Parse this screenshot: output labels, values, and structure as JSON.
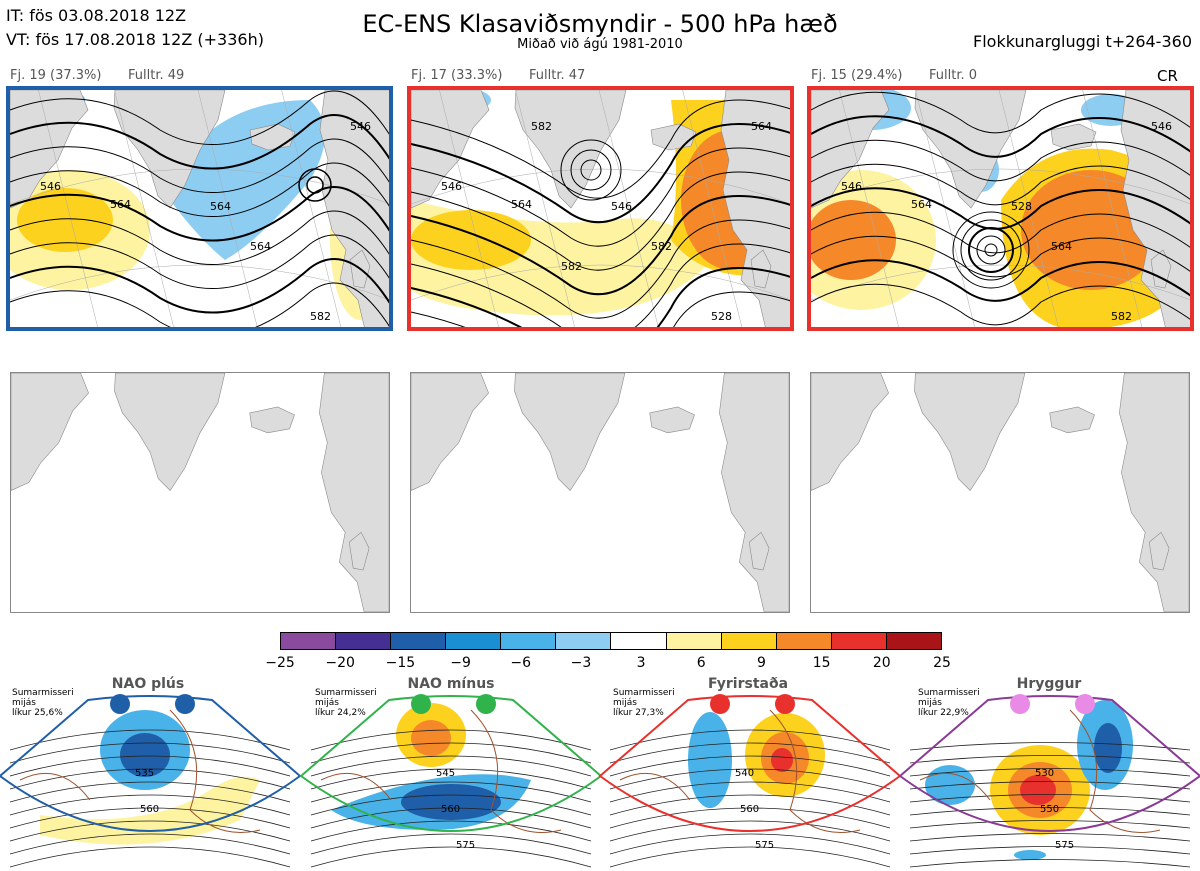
{
  "header": {
    "it": "IT: fös 03.08.2018 12Z",
    "vt": "VT: fös 17.08.2018 12Z  (+336h)",
    "title": "EC-ENS Klasaviðsmyndir - 500 hPa hæð",
    "subtitle": "Miðað við ágú 1981-2010",
    "window": "Flokkunargluggi t+264-360",
    "cr": "CR"
  },
  "panels": [
    {
      "label": "Fj. 19 (37.3%)",
      "fulltr": "Fulltr. 49",
      "border": "#1f5fa8",
      "contours": [
        "546",
        "564",
        "564",
        "582",
        "564",
        "546"
      ]
    },
    {
      "label": "Fj. 17 (33.3%)",
      "fulltr": "Fulltr. 47",
      "border": "#e8312c",
      "contours": [
        "546",
        "564",
        "582",
        "528",
        "546",
        "564",
        "582",
        "582"
      ]
    },
    {
      "label": "Fj. 15 (29.4%)",
      "fulltr": "Fulltr. 0",
      "border": "#e8312c",
      "contours": [
        "546",
        "564",
        "564",
        "582",
        "528",
        "546"
      ]
    }
  ],
  "colorbar": {
    "ticks": [
      "−25",
      "−20",
      "−15",
      "−9",
      "−6",
      "−3",
      "3",
      "6",
      "9",
      "15",
      "20",
      "25"
    ],
    "colors": [
      "#8a4b9f",
      "#462f93",
      "#1f5ea8",
      "#1a8fd1",
      "#49b2e8",
      "#8ecdf2",
      "#ffffff",
      "#fdf3a0",
      "#fdd21f",
      "#f5892a",
      "#e8312c",
      "#a91419"
    ]
  },
  "regimes": [
    {
      "name": "NAO plús",
      "info1": "Sumarmisseri",
      "info2": "mijás",
      "info3": "líkur 25,6%",
      "dot": "#1f5fa8",
      "frame": "#1f5fa8",
      "labels": [
        "535",
        "560"
      ]
    },
    {
      "name": "NAO mínus",
      "info1": "Sumarmisseri",
      "info2": "mijás",
      "info3": "líkur 24,2%",
      "dot": "#2fb34a",
      "frame": "#2fb34a",
      "labels": [
        "545",
        "560",
        "575"
      ]
    },
    {
      "name": "Fyrirstaða",
      "info1": "Sumarmisseri",
      "info2": "mijás",
      "info3": "líkur 27,3%",
      "dot": "#e8312c",
      "frame": "#e8312c",
      "labels": [
        "540",
        "560",
        "575"
      ]
    },
    {
      "name": "Hryggur",
      "info1": "Sumarmisseri",
      "info2": "mijás",
      "info3": "líkur 22,9%",
      "dot": "#e98ae7",
      "frame": "#8a3a96",
      "labels": [
        "530",
        "550",
        "575"
      ]
    }
  ]
}
